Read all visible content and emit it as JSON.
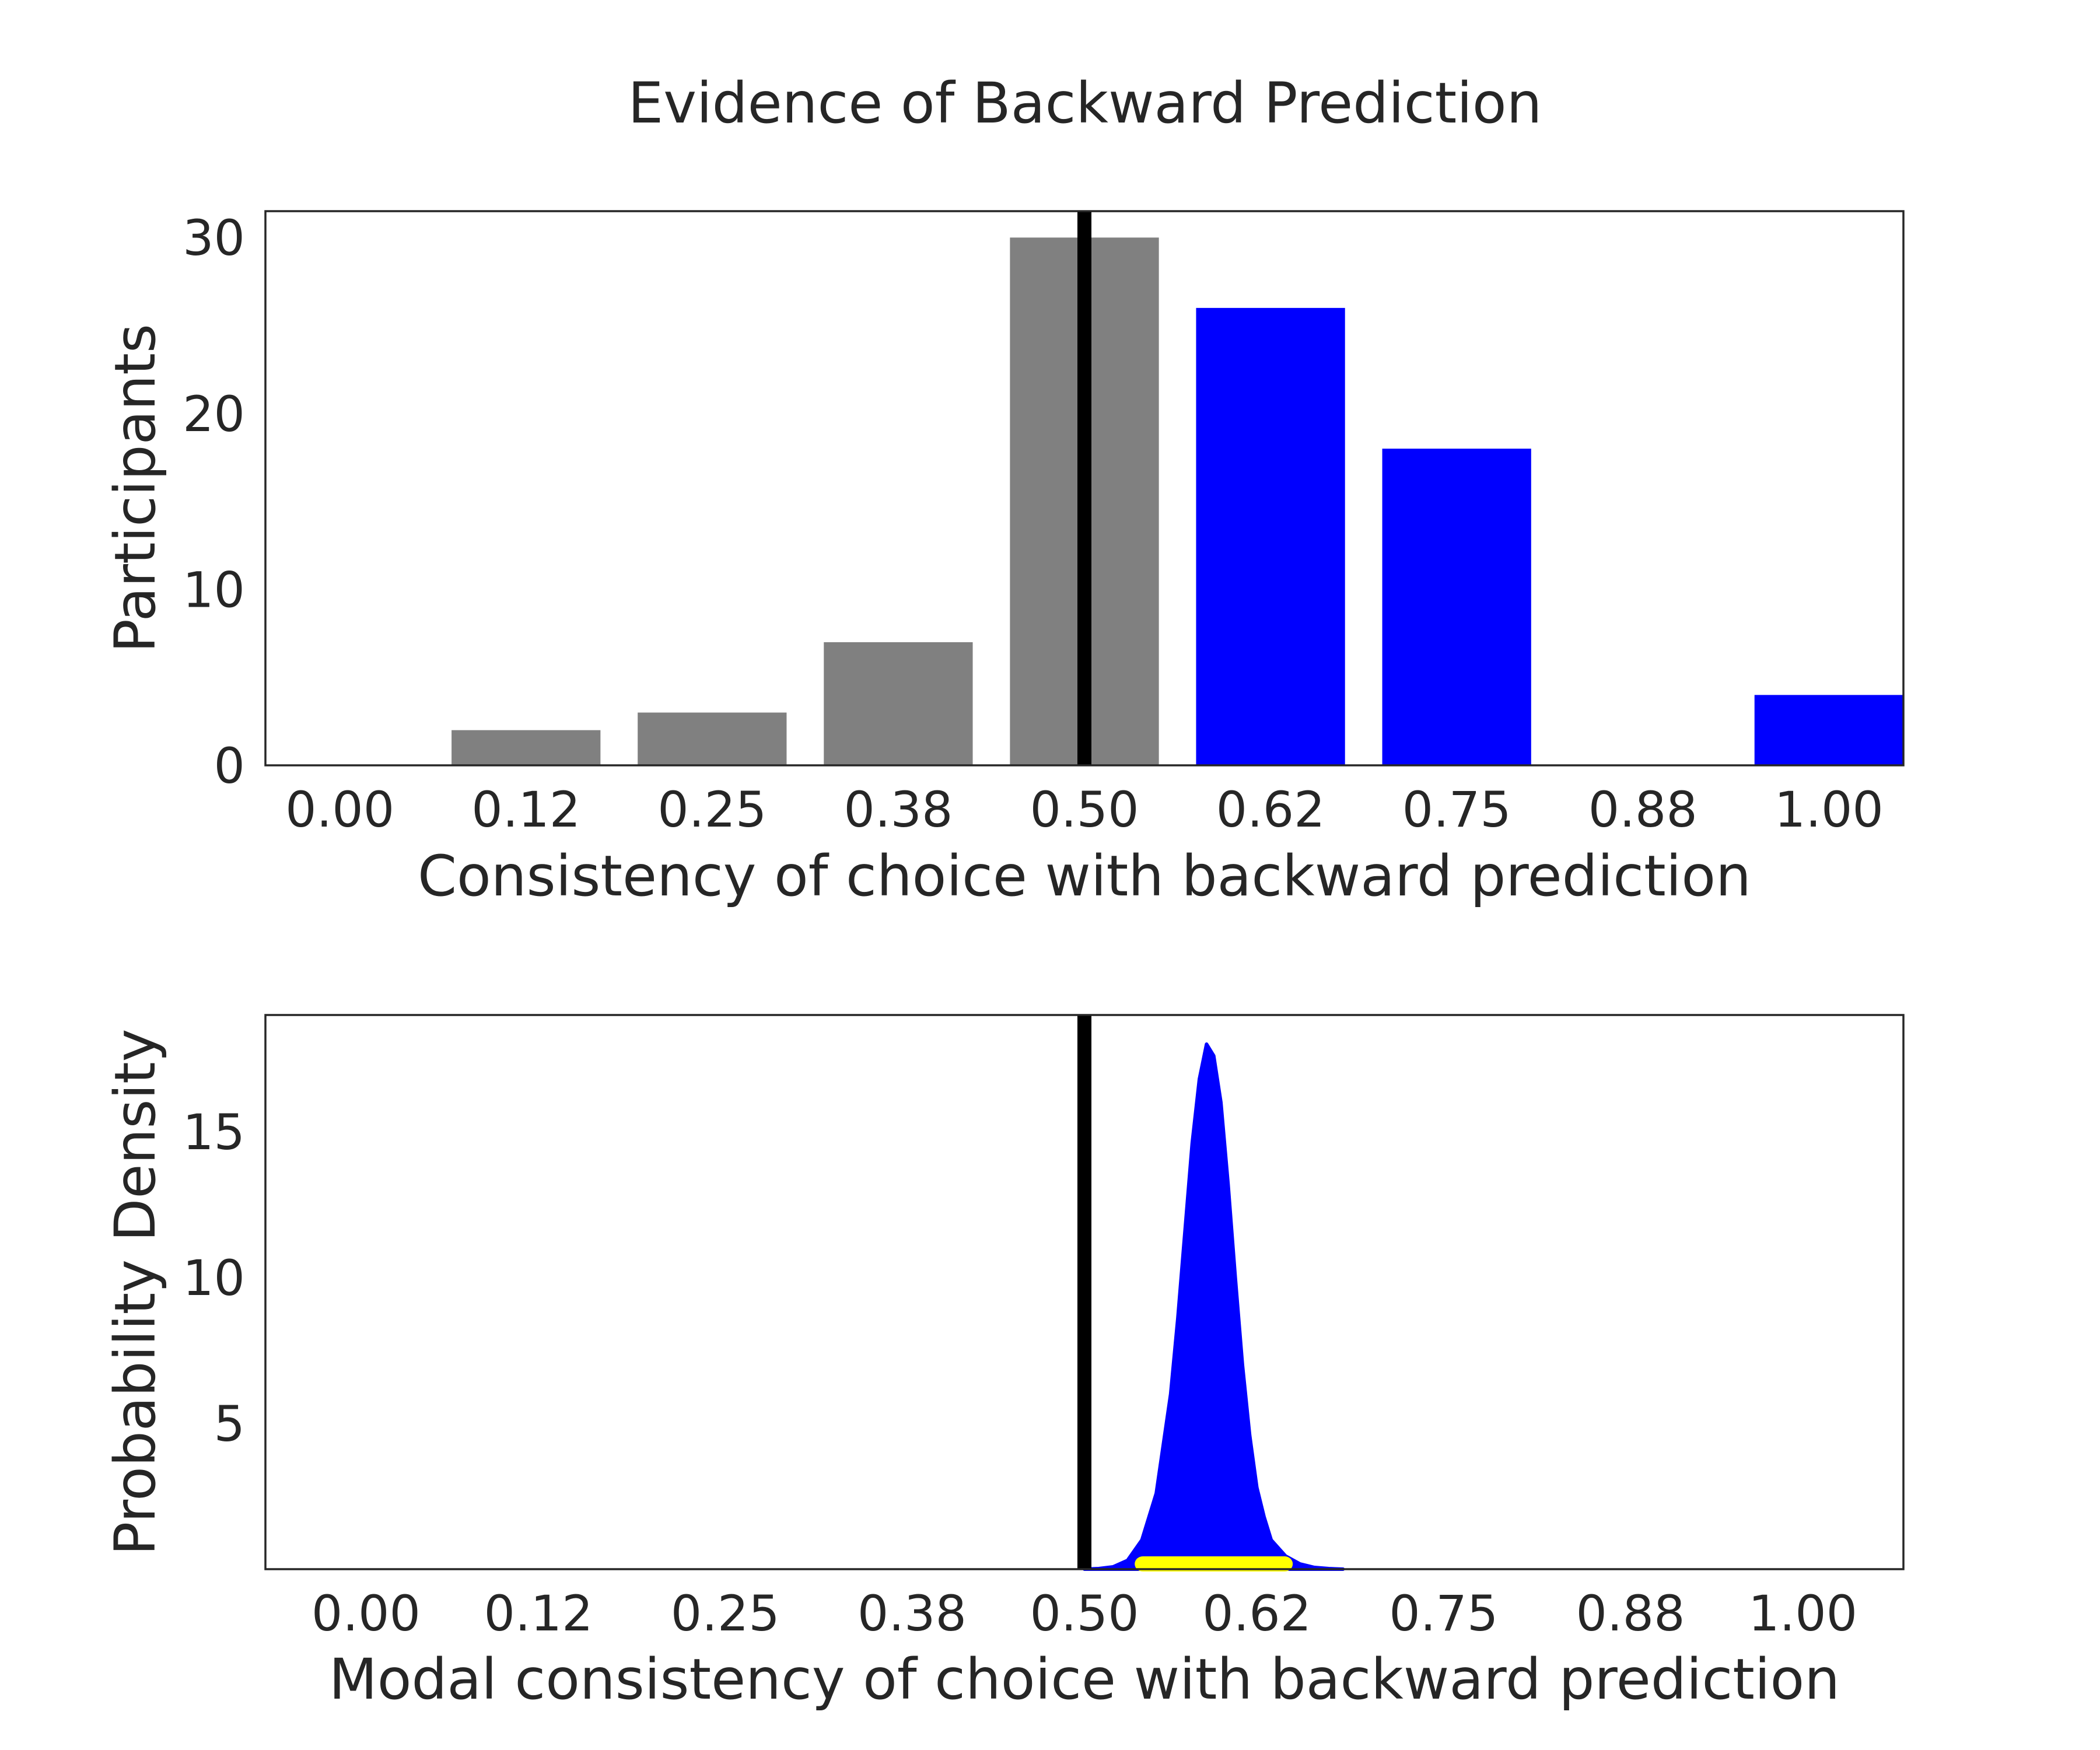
{
  "chart_data": [
    {
      "type": "bar",
      "title": "Evidence of Backward Prediction",
      "xlabel": "Consistency of choice with backward prediction",
      "ylabel": "Participants",
      "categories": [
        "0.00",
        "0.12",
        "0.25",
        "0.38",
        "0.50",
        "0.62",
        "0.75",
        "0.88",
        "1.00"
      ],
      "values": [
        0,
        2,
        3,
        7,
        30,
        26,
        18,
        0,
        4
      ],
      "bar_colors": [
        "#808080",
        "#808080",
        "#808080",
        "#808080",
        "#808080",
        "#0000ff",
        "#0000ff",
        "#0000ff",
        "#0000ff"
      ],
      "yticks": [
        "0",
        "10",
        "20",
        "30"
      ],
      "ylim": [
        0,
        31.5
      ],
      "reference_line": {
        "x": 0.5,
        "color": "#000000"
      },
      "grid": false
    },
    {
      "type": "area",
      "xlabel": "Modal consistency of choice with backward prediction",
      "ylabel": "Probability Density",
      "xticks": [
        "0.00",
        "0.12",
        "0.25",
        "0.38",
        "0.50",
        "0.62",
        "0.75",
        "0.88",
        "1.00"
      ],
      "yticks": [
        "5",
        "10",
        "15"
      ],
      "xlim": [
        -0.07,
        1.07
      ],
      "ylim": [
        0,
        19
      ],
      "density": {
        "color": "#0000ff",
        "x": [
          0.5,
          0.51,
          0.52,
          0.53,
          0.54,
          0.55,
          0.56,
          0.565,
          0.57,
          0.575,
          0.58,
          0.585,
          0.59,
          0.595,
          0.6,
          0.605,
          0.61,
          0.615,
          0.62,
          0.625,
          0.63,
          0.64,
          0.65,
          0.66,
          0.67,
          0.68
        ],
        "y": [
          0,
          0.02,
          0.08,
          0.3,
          1.0,
          2.6,
          6.0,
          8.6,
          11.6,
          14.6,
          16.8,
          18.0,
          17.6,
          16.0,
          13.2,
          10.0,
          7.0,
          4.6,
          2.8,
          1.8,
          1.0,
          0.45,
          0.18,
          0.06,
          0.02,
          0
        ]
      },
      "interval": {
        "x_start": 0.535,
        "x_end": 0.645,
        "color": "#ffff00"
      },
      "reference_line": {
        "x": 0.5,
        "color": "#000000"
      },
      "grid": false
    }
  ]
}
